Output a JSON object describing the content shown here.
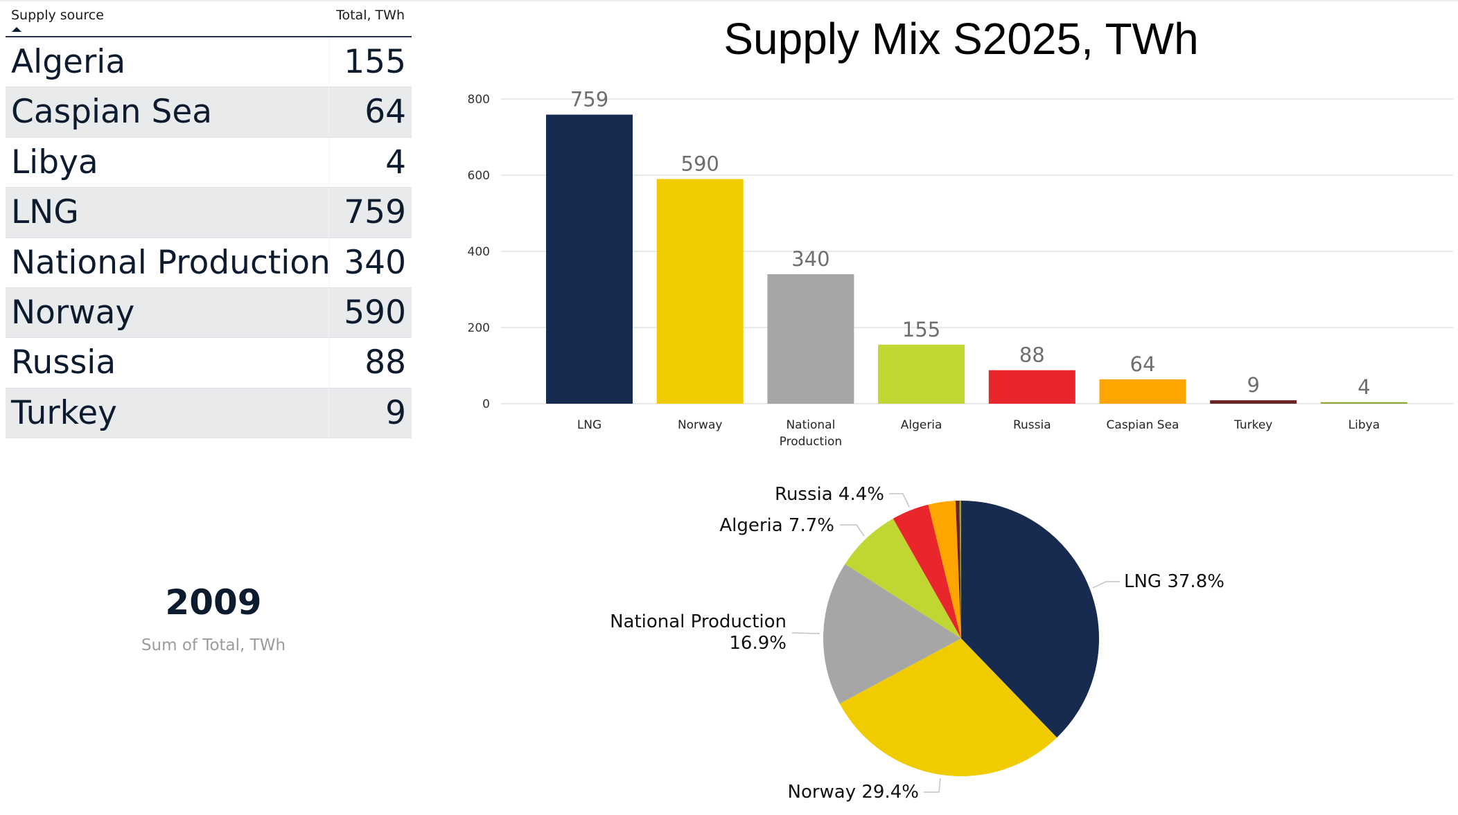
{
  "table": {
    "columns": [
      "Supply source",
      "Total, TWh"
    ],
    "sort_column": "Supply source",
    "rows": [
      {
        "name": "Algeria",
        "value": "155"
      },
      {
        "name": "Caspian Sea",
        "value": "64"
      },
      {
        "name": "Libya",
        "value": "4"
      },
      {
        "name": "LNG",
        "value": "759"
      },
      {
        "name": "National Production",
        "value": "340"
      },
      {
        "name": "Norway",
        "value": "590"
      },
      {
        "name": "Russia",
        "value": "88"
      },
      {
        "name": "Turkey",
        "value": "9"
      }
    ]
  },
  "kpi": {
    "value": "2009",
    "label": "Sum of Total, TWh"
  },
  "colors": {
    "LNG": "#172a50",
    "Norway": "#f0cb00",
    "National Production": "#a6a6a6",
    "Algeria": "#c0d632",
    "Russia": "#e8262c",
    "Caspian Sea": "#ffa500",
    "Turkey": "#6b2424",
    "Libya": "#8fa83a"
  },
  "chart_data": [
    {
      "type": "bar",
      "title": "Supply Mix S2025, TWh",
      "categories": [
        "LNG",
        "Norway",
        "National Production",
        "Algeria",
        "Russia",
        "Caspian Sea",
        "Turkey",
        "Libya"
      ],
      "category_labels": [
        [
          "LNG"
        ],
        [
          "Norway"
        ],
        [
          "National",
          "Production"
        ],
        [
          "Algeria"
        ],
        [
          "Russia"
        ],
        [
          "Caspian Sea"
        ],
        [
          "Turkey"
        ],
        [
          "Libya"
        ]
      ],
      "values": [
        759,
        590,
        340,
        155,
        88,
        64,
        9,
        4
      ],
      "yticks": [
        0,
        200,
        400,
        600,
        800
      ],
      "ylim": [
        0,
        800
      ],
      "grid": true,
      "xlabel": "",
      "ylabel": ""
    },
    {
      "type": "pie",
      "categories": [
        "LNG",
        "Norway",
        "National Production",
        "Algeria",
        "Russia",
        "Caspian Sea",
        "Turkey",
        "Libya"
      ],
      "values": [
        759,
        590,
        340,
        155,
        88,
        64,
        9,
        4
      ],
      "labels": [
        {
          "category": "LNG",
          "lines": [
            "LNG 37.8%"
          ]
        },
        {
          "category": "Norway",
          "lines": [
            "Norway 29.4%"
          ]
        },
        {
          "category": "National Production",
          "lines": [
            "National Production",
            "16.9%"
          ]
        },
        {
          "category": "Algeria",
          "lines": [
            "Algeria 7.7%"
          ]
        },
        {
          "category": "Russia",
          "lines": [
            "Russia 4.4%"
          ]
        }
      ]
    }
  ]
}
